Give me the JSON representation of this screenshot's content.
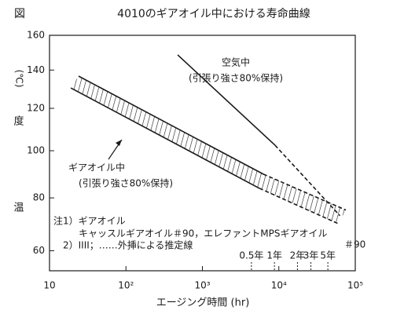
{
  "chart_data": {
    "type": "line",
    "figure_label": "図",
    "title": "4010のギアオイル中における寿命曲線",
    "x_label": "エージング時間 (hr)",
    "y_label_parts": [
      "温",
      "度",
      "(℃)"
    ],
    "x_scale": "log",
    "y_scale": "reciprocal-kelvin",
    "xlim": [
      10,
      100000
    ],
    "ylim": [
      53,
      160
    ],
    "xticks": [
      10,
      {
        "value": 100,
        "label": "10²"
      },
      {
        "value": 1000,
        "label": "10³"
      },
      {
        "value": 10000,
        "label": "10⁴"
      },
      {
        "value": 100000,
        "label": "10⁵"
      }
    ],
    "yticks": [
      60,
      80,
      100,
      120,
      140,
      160
    ],
    "color": "#1a1a1a",
    "series": [
      {
        "style": "solid",
        "x": [
          475,
          8900
        ],
        "values": [
          148.5,
          102.5
        ]
      },
      {
        "style": "dashed",
        "x": [
          8900,
          63000
        ],
        "values": [
          102.5,
          73
        ]
      }
    ],
    "bands": [
      {
        "style": "solid",
        "fill": "hatch",
        "upper": {
          "x": [
            24,
            6270
          ],
          "values": [
            136.7,
            89.8
          ]
        },
        "lower": {
          "x": [
            19,
            5560
          ],
          "values": [
            130.4,
            83.9
          ]
        }
      },
      {
        "style": "dashed",
        "fill": "hatch",
        "upper": {
          "x": [
            6270,
            75300
          ],
          "values": [
            89.8,
            75.2
          ]
        },
        "lower": {
          "x": [
            5560,
            59400
          ],
          "values": [
            83.9,
            70.0
          ]
        }
      }
    ],
    "annotations": [
      "空気中",
      "(引張り強さ80%保持)",
      "ギアオイル中",
      "(引張り強さ80%保持)",
      "注1）ギアオイル",
      "キャッスルギアオイル＃90，エレファントMPSギアオイル",
      "＃90",
      "2）IIII；……外挿による推定線"
    ],
    "year_marks": [
      {
        "value": 4380,
        "label": "0.5年"
      },
      {
        "value": 8760,
        "label": "1年"
      },
      {
        "value": 17520,
        "label": "2年"
      },
      {
        "value": 26280,
        "label": "3年"
      },
      {
        "value": 43800,
        "label": "5年"
      }
    ]
  }
}
